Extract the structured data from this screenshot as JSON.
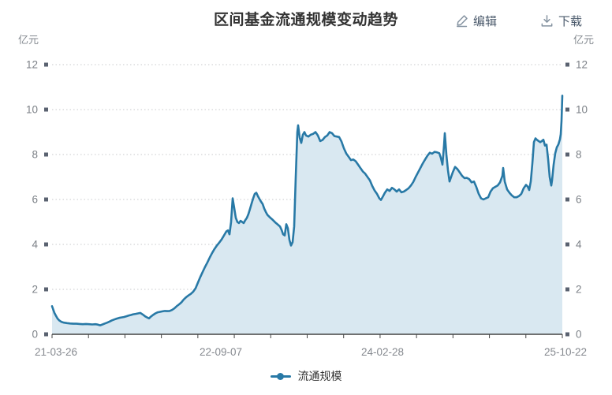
{
  "header": {
    "title": "区间基金流通规模变动趋势",
    "edit_label": "编辑",
    "download_label": "下载"
  },
  "chart_data": {
    "type": "area",
    "title": "区间基金流通规模变动趋势",
    "y_unit": "亿元",
    "series_name": "流通规模",
    "ylim": [
      0,
      12
    ],
    "y_ticks": [
      0,
      2,
      4,
      6,
      8,
      10,
      12
    ],
    "x_ticks": [
      "21-03-26",
      "22-09-07",
      "24-02-28",
      "25-10-22"
    ],
    "grid": "dotted-horizontal",
    "legend_position": "bottom",
    "line_color": "#2879a6",
    "fill_color": "#d9e8f1",
    "axis_color": "#444444",
    "tick_square_color": "#5a6270",
    "tick_label_color": "#7d8288",
    "points": [
      [
        66,
        1.25
      ],
      [
        67,
        1.15
      ],
      [
        68,
        1.05
      ],
      [
        69,
        0.95
      ],
      [
        71,
        0.82
      ],
      [
        73,
        0.7
      ],
      [
        75,
        0.62
      ],
      [
        78,
        0.55
      ],
      [
        81,
        0.52
      ],
      [
        85,
        0.5
      ],
      [
        89,
        0.48
      ],
      [
        93,
        0.47
      ],
      [
        97,
        0.47
      ],
      [
        101,
        0.46
      ],
      [
        105,
        0.45
      ],
      [
        109,
        0.46
      ],
      [
        113,
        0.45
      ],
      [
        117,
        0.44
      ],
      [
        121,
        0.45
      ],
      [
        124,
        0.43
      ],
      [
        127,
        0.4
      ],
      [
        130,
        0.44
      ],
      [
        133,
        0.48
      ],
      [
        136,
        0.52
      ],
      [
        139,
        0.57
      ],
      [
        142,
        0.62
      ],
      [
        145,
        0.66
      ],
      [
        148,
        0.7
      ],
      [
        151,
        0.73
      ],
      [
        154,
        0.75
      ],
      [
        157,
        0.77
      ],
      [
        160,
        0.8
      ],
      [
        163,
        0.83
      ],
      [
        166,
        0.86
      ],
      [
        169,
        0.89
      ],
      [
        172,
        0.91
      ],
      [
        175,
        0.93
      ],
      [
        178,
        0.95
      ],
      [
        181,
        0.88
      ],
      [
        184,
        0.8
      ],
      [
        187,
        0.74
      ],
      [
        189,
        0.71
      ],
      [
        191,
        0.78
      ],
      [
        194,
        0.86
      ],
      [
        197,
        0.93
      ],
      [
        200,
        0.98
      ],
      [
        203,
        1.0
      ],
      [
        206,
        1.02
      ],
      [
        209,
        1.04
      ],
      [
        212,
        1.03
      ],
      [
        215,
        1.04
      ],
      [
        218,
        1.08
      ],
      [
        221,
        1.15
      ],
      [
        224,
        1.25
      ],
      [
        227,
        1.33
      ],
      [
        230,
        1.42
      ],
      [
        233,
        1.55
      ],
      [
        236,
        1.65
      ],
      [
        239,
        1.73
      ],
      [
        242,
        1.8
      ],
      [
        245,
        1.9
      ],
      [
        248,
        2.05
      ],
      [
        251,
        2.3
      ],
      [
        254,
        2.55
      ],
      [
        257,
        2.78
      ],
      [
        260,
        3.0
      ],
      [
        263,
        3.2
      ],
      [
        266,
        3.42
      ],
      [
        269,
        3.62
      ],
      [
        272,
        3.8
      ],
      [
        275,
        3.95
      ],
      [
        278,
        4.08
      ],
      [
        281,
        4.22
      ],
      [
        284,
        4.4
      ],
      [
        287,
        4.58
      ],
      [
        289,
        4.62
      ],
      [
        291,
        4.45
      ],
      [
        293,
        5.0
      ],
      [
        295,
        6.05
      ],
      [
        297,
        5.62
      ],
      [
        299,
        5.18
      ],
      [
        301,
        5.0
      ],
      [
        303,
        4.95
      ],
      [
        305,
        5.05
      ],
      [
        307,
        5.0
      ],
      [
        309,
        4.95
      ],
      [
        311,
        5.08
      ],
      [
        313,
        5.18
      ],
      [
        315,
        5.35
      ],
      [
        317,
        5.58
      ],
      [
        319,
        5.82
      ],
      [
        321,
        6.05
      ],
      [
        323,
        6.25
      ],
      [
        325,
        6.3
      ],
      [
        327,
        6.15
      ],
      [
        329,
        6.02
      ],
      [
        331,
        5.9
      ],
      [
        333,
        5.8
      ],
      [
        335,
        5.6
      ],
      [
        337,
        5.45
      ],
      [
        339,
        5.32
      ],
      [
        341,
        5.25
      ],
      [
        343,
        5.18
      ],
      [
        345,
        5.12
      ],
      [
        347,
        5.05
      ],
      [
        349,
        4.98
      ],
      [
        351,
        4.92
      ],
      [
        353,
        4.86
      ],
      [
        355,
        4.8
      ],
      [
        357,
        4.65
      ],
      [
        359,
        4.45
      ],
      [
        361,
        4.4
      ],
      [
        363,
        4.9
      ],
      [
        365,
        4.72
      ],
      [
        367,
        4.2
      ],
      [
        369,
        3.95
      ],
      [
        371,
        4.1
      ],
      [
        373,
        4.8
      ],
      [
        375,
        7.0
      ],
      [
        377,
        9.0
      ],
      [
        378,
        9.3
      ],
      [
        380,
        8.75
      ],
      [
        382,
        8.52
      ],
      [
        384,
        8.88
      ],
      [
        386,
        9.0
      ],
      [
        388,
        8.85
      ],
      [
        391,
        8.8
      ],
      [
        394,
        8.88
      ],
      [
        397,
        8.92
      ],
      [
        400,
        9.0
      ],
      [
        403,
        8.85
      ],
      [
        406,
        8.6
      ],
      [
        409,
        8.65
      ],
      [
        412,
        8.78
      ],
      [
        415,
        8.85
      ],
      [
        418,
        9.0
      ],
      [
        421,
        8.95
      ],
      [
        424,
        8.82
      ],
      [
        427,
        8.8
      ],
      [
        430,
        8.78
      ],
      [
        433,
        8.58
      ],
      [
        436,
        8.28
      ],
      [
        439,
        8.05
      ],
      [
        442,
        7.9
      ],
      [
        445,
        7.75
      ],
      [
        448,
        7.78
      ],
      [
        451,
        7.7
      ],
      [
        454,
        7.55
      ],
      [
        457,
        7.4
      ],
      [
        460,
        7.25
      ],
      [
        463,
        7.15
      ],
      [
        466,
        7.0
      ],
      [
        469,
        6.85
      ],
      [
        472,
        6.6
      ],
      [
        475,
        6.4
      ],
      [
        478,
        6.25
      ],
      [
        481,
        6.05
      ],
      [
        483,
        5.98
      ],
      [
        485,
        6.1
      ],
      [
        488,
        6.3
      ],
      [
        491,
        6.45
      ],
      [
        494,
        6.38
      ],
      [
        497,
        6.52
      ],
      [
        500,
        6.45
      ],
      [
        503,
        6.35
      ],
      [
        506,
        6.45
      ],
      [
        509,
        6.32
      ],
      [
        512,
        6.35
      ],
      [
        515,
        6.42
      ],
      [
        518,
        6.5
      ],
      [
        521,
        6.62
      ],
      [
        524,
        6.78
      ],
      [
        527,
        7.0
      ],
      [
        530,
        7.2
      ],
      [
        533,
        7.4
      ],
      [
        536,
        7.6
      ],
      [
        539,
        7.78
      ],
      [
        542,
        7.95
      ],
      [
        545,
        8.08
      ],
      [
        548,
        8.04
      ],
      [
        551,
        8.12
      ],
      [
        554,
        8.1
      ],
      [
        557,
        8.06
      ],
      [
        559,
        7.85
      ],
      [
        561,
        7.55
      ],
      [
        563,
        8.4
      ],
      [
        564,
        8.95
      ],
      [
        566,
        8.0
      ],
      [
        568,
        7.3
      ],
      [
        570,
        6.8
      ],
      [
        572,
        7.0
      ],
      [
        574,
        7.2
      ],
      [
        577,
        7.45
      ],
      [
        580,
        7.35
      ],
      [
        583,
        7.2
      ],
      [
        586,
        7.05
      ],
      [
        589,
        6.95
      ],
      [
        592,
        6.96
      ],
      [
        595,
        6.9
      ],
      [
        598,
        6.76
      ],
      [
        601,
        6.8
      ],
      [
        604,
        6.55
      ],
      [
        607,
        6.25
      ],
      [
        610,
        6.05
      ],
      [
        613,
        6.0
      ],
      [
        616,
        6.05
      ],
      [
        619,
        6.1
      ],
      [
        622,
        6.35
      ],
      [
        625,
        6.5
      ],
      [
        628,
        6.56
      ],
      [
        631,
        6.62
      ],
      [
        634,
        6.76
      ],
      [
        637,
        7.05
      ],
      [
        638,
        7.4
      ],
      [
        640,
        6.8
      ],
      [
        643,
        6.45
      ],
      [
        646,
        6.3
      ],
      [
        649,
        6.18
      ],
      [
        652,
        6.1
      ],
      [
        655,
        6.1
      ],
      [
        658,
        6.15
      ],
      [
        661,
        6.25
      ],
      [
        664,
        6.5
      ],
      [
        667,
        6.65
      ],
      [
        669,
        6.58
      ],
      [
        671,
        6.42
      ],
      [
        673,
        6.8
      ],
      [
        675,
        7.6
      ],
      [
        677,
        8.55
      ],
      [
        679,
        8.72
      ],
      [
        681,
        8.65
      ],
      [
        683,
        8.6
      ],
      [
        685,
        8.55
      ],
      [
        687,
        8.6
      ],
      [
        689,
        8.66
      ],
      [
        691,
        8.4
      ],
      [
        693,
        8.44
      ],
      [
        695,
        7.8
      ],
      [
        697,
        7.0
      ],
      [
        699,
        6.62
      ],
      [
        700,
        6.85
      ],
      [
        702,
        7.55
      ],
      [
        704,
        8.05
      ],
      [
        706,
        8.32
      ],
      [
        708,
        8.45
      ],
      [
        710,
        8.68
      ],
      [
        711,
        8.9
      ],
      [
        712,
        9.5
      ],
      [
        713,
        10.62
      ]
    ]
  }
}
